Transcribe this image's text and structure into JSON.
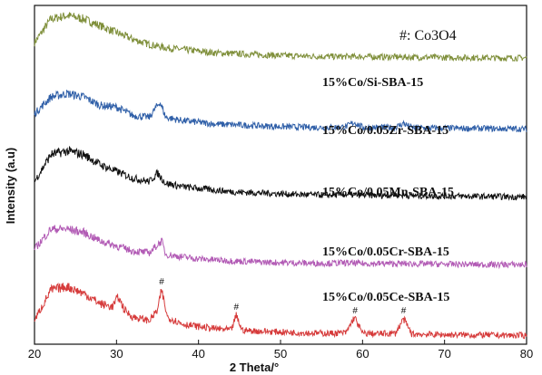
{
  "chart_data": {
    "type": "line",
    "title": "",
    "xlabel": "2 Theta/°",
    "ylabel": "Intensity (a.u)",
    "xlim": [
      20,
      80
    ],
    "xticks": [
      20,
      30,
      40,
      50,
      60,
      70,
      80
    ],
    "legend_note": "#: Co3O4",
    "grid": false,
    "series": [
      {
        "name": "15%Co/Si-SBA-15",
        "color": "#7f8f3a",
        "offset": 0.84,
        "x": [
          20,
          22,
          24,
          26,
          28,
          30,
          32,
          34,
          36,
          38,
          40,
          42,
          44,
          46,
          48,
          50,
          52,
          54,
          56,
          58,
          60,
          62,
          64,
          66,
          68,
          70,
          72,
          74,
          76,
          78,
          80
        ],
        "y": [
          0.05,
          0.12,
          0.13,
          0.12,
          0.1,
          0.08,
          0.06,
          0.045,
          0.035,
          0.03,
          0.025,
          0.02,
          0.018,
          0.016,
          0.014,
          0.012,
          0.011,
          0.01,
          0.009,
          0.009,
          0.009,
          0.008,
          0.008,
          0.007,
          0.007,
          0.006,
          0.006,
          0.006,
          0.005,
          0.005,
          0.005
        ]
      },
      {
        "name": "15%Co/0.05Zr-SBA-15",
        "color": "#2f5fa8",
        "offset": 0.63,
        "x": [
          20,
          22,
          24,
          26,
          28,
          30,
          32,
          34,
          35.3,
          36,
          38,
          40,
          42,
          44,
          46,
          48,
          50,
          52,
          54,
          56,
          58,
          59,
          60,
          62,
          64,
          65,
          66,
          68,
          70,
          72,
          74,
          76,
          78,
          80
        ],
        "y": [
          0.05,
          0.1,
          0.11,
          0.1,
          0.075,
          0.07,
          0.045,
          0.04,
          0.085,
          0.04,
          0.03,
          0.025,
          0.02,
          0.018,
          0.016,
          0.014,
          0.012,
          0.011,
          0.01,
          0.01,
          0.012,
          0.025,
          0.01,
          0.009,
          0.01,
          0.022,
          0.009,
          0.008,
          0.008,
          0.007,
          0.007,
          0.006,
          0.006,
          0.005
        ]
      },
      {
        "name": "15%Co/0.05Mn-SBA-15",
        "color": "#111111",
        "offset": 0.43,
        "x": [
          20,
          22,
          24,
          26,
          28,
          30,
          32,
          34,
          35,
          36,
          38,
          40,
          42,
          44,
          46,
          48,
          50,
          52,
          54,
          56,
          58,
          60,
          62,
          64,
          66,
          68,
          70,
          72,
          74,
          76,
          78,
          80
        ],
        "y": [
          0.05,
          0.13,
          0.14,
          0.13,
          0.1,
          0.08,
          0.06,
          0.05,
          0.075,
          0.045,
          0.035,
          0.03,
          0.025,
          0.02,
          0.018,
          0.016,
          0.014,
          0.012,
          0.011,
          0.01,
          0.012,
          0.01,
          0.009,
          0.011,
          0.008,
          0.008,
          0.007,
          0.007,
          0.006,
          0.006,
          0.005,
          0.005
        ]
      },
      {
        "name": "15%Co/0.05Cr-SBA-15",
        "color": "#b25bb5",
        "offset": 0.23,
        "x": [
          20,
          22,
          24,
          26,
          28,
          30,
          32,
          34,
          35.5,
          36,
          38,
          40,
          42,
          44,
          46,
          48,
          50,
          52,
          54,
          56,
          58,
          60,
          62,
          64,
          66,
          68,
          70,
          72,
          74,
          76,
          78,
          80
        ],
        "y": [
          0.05,
          0.11,
          0.11,
          0.1,
          0.075,
          0.06,
          0.045,
          0.04,
          0.075,
          0.035,
          0.028,
          0.022,
          0.019,
          0.016,
          0.014,
          0.012,
          0.011,
          0.01,
          0.009,
          0.009,
          0.01,
          0.008,
          0.008,
          0.008,
          0.007,
          0.007,
          0.006,
          0.006,
          0.005,
          0.005,
          0.005,
          0.005
        ]
      },
      {
        "name": "15%Co/0.05Ce-SBA-15",
        "color": "#d63b3b",
        "offset": 0.02,
        "x": [
          20,
          22,
          24,
          26,
          28,
          29.5,
          30.2,
          31,
          32,
          34,
          35,
          35.5,
          36.2,
          38,
          40,
          42,
          44,
          44.6,
          45.3,
          46,
          48,
          50,
          52,
          54,
          56,
          58,
          59,
          60,
          62,
          64,
          65,
          66,
          68,
          70,
          72,
          74,
          76,
          78,
          80
        ],
        "y": [
          0.05,
          0.14,
          0.15,
          0.13,
          0.1,
          0.09,
          0.12,
          0.08,
          0.06,
          0.05,
          0.08,
          0.14,
          0.06,
          0.04,
          0.032,
          0.026,
          0.022,
          0.065,
          0.022,
          0.02,
          0.018,
          0.016,
          0.014,
          0.013,
          0.012,
          0.014,
          0.06,
          0.012,
          0.011,
          0.012,
          0.055,
          0.01,
          0.009,
          0.008,
          0.008,
          0.007,
          0.007,
          0.006,
          0.006
        ]
      }
    ],
    "peak_markers": [
      {
        "x": 35.5,
        "series": 4,
        "label": "#"
      },
      {
        "x": 44.6,
        "series": 4,
        "label": "#"
      },
      {
        "x": 59.1,
        "series": 4,
        "label": "#"
      },
      {
        "x": 65.0,
        "series": 4,
        "label": "#"
      }
    ]
  }
}
